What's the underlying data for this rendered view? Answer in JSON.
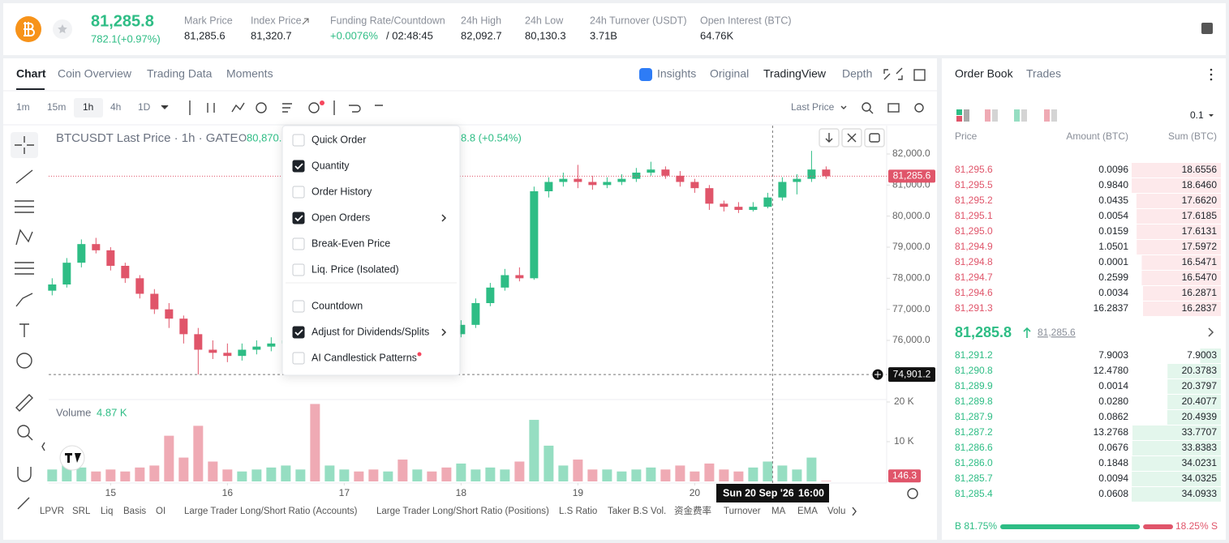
{
  "header": {
    "price": "81,285.8",
    "change": "782.1(+0.97%)",
    "stats": [
      {
        "label": "Mark Price",
        "value": "81,285.6"
      },
      {
        "label": "Index Price",
        "value": "81,320.7"
      },
      {
        "label": "Funding Rate/Countdown",
        "value": "+0.0076%",
        "countdown": "/ 02:48:45"
      },
      {
        "label": "24h High",
        "value": "82,092.7"
      },
      {
        "label": "24h Low",
        "value": "80,130.3"
      },
      {
        "label": "24h Turnover (USDT)",
        "value": "3.71B"
      },
      {
        "label": "Open Interest (BTC)",
        "value": "64.76K"
      }
    ]
  },
  "chart_tabs": [
    "Chart",
    "Coin Overview",
    "Trading Data",
    "Moments"
  ],
  "view_tabs": [
    "Insights",
    "Original",
    "TradingView",
    "Depth"
  ],
  "intervals": [
    "1m",
    "15m",
    "1h",
    "4h",
    "1D"
  ],
  "price_type": "Last Price",
  "legend": {
    "title": "BTCUSDT Last Price · 1h · GATE",
    "open_label": "O",
    "open": "80,870.",
    "change": "8.8 (+0.54%)"
  },
  "chart": {
    "type": "candlestick",
    "up_color": "#2ebd85",
    "down_color": "#e0556a",
    "xlim": [
      14.47,
      21.65
    ],
    "xticks": [
      15,
      16,
      17,
      18,
      19,
      20
    ],
    "ylim": [
      74500,
      82800
    ],
    "yticks": [
      {
        "value": 82000,
        "label": "82,000.0"
      },
      {
        "value": 81000,
        "label": "81,000.0"
      },
      {
        "value": 80000,
        "label": "80,000.0"
      },
      {
        "value": 79000,
        "label": "79,000.0"
      },
      {
        "value": 78000,
        "label": "78,000.0"
      },
      {
        "value": 77000,
        "label": "77,000.0"
      },
      {
        "value": 76000,
        "label": "76,000.0"
      }
    ],
    "x": [
      14.5,
      14.625,
      14.75,
      14.875,
      15,
      15.125,
      15.25,
      15.375,
      15.5,
      15.625,
      15.75,
      15.875,
      16,
      16.125,
      16.25,
      16.375,
      16.5,
      16.625,
      16.75,
      16.875,
      17,
      17.125,
      17.25,
      17.375,
      17.5,
      17.625,
      17.75,
      17.875,
      18,
      18.125,
      18.25,
      18.375,
      18.5,
      18.625,
      18.75,
      18.875,
      19,
      19.125,
      19.25,
      19.375,
      19.5,
      19.625,
      19.75,
      19.875,
      20,
      20.125,
      20.25,
      20.375,
      20.5,
      20.625,
      20.75,
      20.875,
      21,
      21.125
    ],
    "candles": [
      [
        77600,
        78000,
        77450,
        77800
      ],
      [
        77800,
        78650,
        77700,
        78500
      ],
      [
        78500,
        79250,
        78350,
        79100
      ],
      [
        79100,
        79300,
        78800,
        78900
      ],
      [
        78900,
        79000,
        78250,
        78400
      ],
      [
        78400,
        78500,
        77850,
        78000
      ],
      [
        78000,
        78100,
        77350,
        77500
      ],
      [
        77500,
        77650,
        76850,
        77000
      ],
      [
        77000,
        77200,
        76400,
        76700
      ],
      [
        76700,
        76800,
        75900,
        76200
      ],
      [
        76200,
        76400,
        74900,
        75700
      ],
      [
        75700,
        76000,
        75400,
        75600
      ],
      [
        75600,
        75900,
        75300,
        75500
      ],
      [
        75500,
        75900,
        75350,
        75700
      ],
      [
        75700,
        76000,
        75550,
        75800
      ],
      [
        75800,
        76100,
        75650,
        75900
      ],
      [
        75900,
        76200,
        75750,
        76000
      ],
      [
        76000,
        76300,
        75900,
        76100
      ],
      [
        76100,
        76350,
        75800,
        76000
      ],
      [
        76000,
        76400,
        75900,
        76200
      ],
      [
        76200,
        76450,
        76050,
        76300
      ],
      [
        76300,
        76400,
        76050,
        76200
      ],
      [
        76200,
        76300,
        75950,
        76100
      ],
      [
        76100,
        76450,
        76000,
        76300
      ],
      [
        76300,
        76400,
        76050,
        76200
      ],
      [
        76200,
        76550,
        76100,
        76400
      ],
      [
        76400,
        76500,
        76150,
        76300
      ],
      [
        76300,
        76400,
        76050,
        76200
      ],
      [
        76200,
        76650,
        76100,
        76500
      ],
      [
        76500,
        77350,
        76400,
        77200
      ],
      [
        77200,
        77850,
        77100,
        77700
      ],
      [
        77700,
        78300,
        77600,
        78100
      ],
      [
        78100,
        78350,
        77900,
        78000
      ],
      [
        78000,
        80950,
        77950,
        80800
      ],
      [
        80800,
        81250,
        80600,
        81100
      ],
      [
        81100,
        81400,
        80950,
        81200
      ],
      [
        81200,
        81650,
        80900,
        81100
      ],
      [
        81100,
        81300,
        80850,
        81000
      ],
      [
        81000,
        81250,
        80900,
        81100
      ],
      [
        81100,
        81350,
        81000,
        81200
      ],
      [
        81200,
        81550,
        81100,
        81400
      ],
      [
        81400,
        81750,
        81300,
        81500
      ],
      [
        81500,
        81600,
        81200,
        81300
      ],
      [
        81300,
        81450,
        80950,
        81100
      ],
      [
        81100,
        81200,
        80750,
        80900
      ],
      [
        80900,
        81000,
        80200,
        80400
      ],
      [
        80400,
        80500,
        80150,
        80300
      ],
      [
        80300,
        80450,
        80100,
        80200
      ],
      [
        80200,
        80450,
        80150,
        80300
      ],
      [
        80300,
        80750,
        80250,
        80600
      ],
      [
        80600,
        81250,
        80500,
        81100
      ],
      [
        81100,
        81350,
        80700,
        81200
      ],
      [
        81200,
        82100,
        81100,
        81500
      ],
      [
        81500,
        81600,
        81200,
        81285
      ]
    ],
    "last_price": 81285.6,
    "last_price_label": "81,285.6",
    "crosshair": {
      "x": 20.6667,
      "price": 74901.2,
      "price_label": "74,901.2",
      "date": "Sun 20 Sep '26",
      "time": "16:00"
    },
    "volume": {
      "title": "Volume",
      "current": "4.87 K",
      "ylim": [
        0,
        20000
      ],
      "yticks": [
        {
          "value": 10000,
          "label": "10 K"
        },
        {
          "value": 20000,
          "label": "20 K"
        }
      ],
      "values": [
        3000,
        4000,
        3500,
        2500,
        3000,
        2500,
        3500,
        4000,
        11500,
        6000,
        14000,
        5000,
        3000,
        2500,
        3000,
        3500,
        4000,
        3000,
        19500,
        4000,
        3000,
        2500,
        3000,
        2500,
        5500,
        3000,
        2500,
        3500,
        4500,
        3000,
        3500,
        3000,
        5000,
        15500,
        9000,
        4000,
        5500,
        3000,
        3000,
        2500,
        3000,
        3500,
        3000,
        4000,
        2500,
        4500,
        3000,
        2500,
        3500,
        5000,
        4000,
        3000,
        6000,
        146.3
      ],
      "last_label": "146.3"
    }
  },
  "menu": {
    "groups": [
      [
        {
          "label": "Quick Order",
          "checked": false,
          "submenu": false
        },
        {
          "label": "Quantity",
          "checked": true,
          "submenu": false
        },
        {
          "label": "Order History",
          "checked": false,
          "submenu": false
        },
        {
          "label": "Open Orders",
          "checked": true,
          "submenu": true
        },
        {
          "label": "Break-Even Price",
          "checked": false,
          "submenu": false
        },
        {
          "label": "Liq. Price (Isolated)",
          "checked": false,
          "submenu": false
        }
      ],
      [
        {
          "label": "Countdown",
          "checked": false,
          "submenu": false
        },
        {
          "label": "Adjust for Dividends/Splits",
          "checked": true,
          "submenu": true
        },
        {
          "label": "AI Candlestick Patterns",
          "checked": false,
          "submenu": false,
          "badge": true
        }
      ]
    ]
  },
  "indicators": [
    "LPVR",
    "SRL",
    "Liq",
    "Basis",
    "OI",
    "Large Trader Long/Short Ratio (Accounts)",
    "Large Trader Long/Short Ratio (Positions)",
    "L.S Ratio",
    "Taker B.S Vol.",
    "资金费率",
    "Turnover",
    "MA",
    "EMA",
    "Volu"
  ],
  "order_book": {
    "tabs": [
      "Order Book",
      "Trades"
    ],
    "precision": "0.1",
    "columns": [
      "Price",
      "Amount (BTC)",
      "Sum (BTC)"
    ],
    "asks": [
      [
        "81,295.6",
        "0.0096",
        "18.6556"
      ],
      [
        "81,295.5",
        "0.9840",
        "18.6460"
      ],
      [
        "81,295.2",
        "0.0435",
        "17.6620"
      ],
      [
        "81,295.1",
        "0.0054",
        "17.6185"
      ],
      [
        "81,295.0",
        "0.0159",
        "17.6131"
      ],
      [
        "81,294.9",
        "1.0501",
        "17.5972"
      ],
      [
        "81,294.8",
        "0.0001",
        "16.5471"
      ],
      [
        "81,294.7",
        "0.2599",
        "16.5470"
      ],
      [
        "81,294.6",
        "0.0034",
        "16.2871"
      ],
      [
        "81,291.3",
        "16.2837",
        "16.2837"
      ]
    ],
    "mid_price": "81,285.8",
    "mark_price": "81,285.6",
    "bids": [
      [
        "81,291.2",
        "7.9003",
        "7.9003"
      ],
      [
        "81,290.8",
        "12.4780",
        "20.3783"
      ],
      [
        "81,289.9",
        "0.0014",
        "20.3797"
      ],
      [
        "81,289.8",
        "0.0280",
        "20.4077"
      ],
      [
        "81,287.9",
        "0.0862",
        "20.4939"
      ],
      [
        "81,287.2",
        "13.2768",
        "33.7707"
      ],
      [
        "81,286.6",
        "0.0676",
        "33.8383"
      ],
      [
        "81,286.0",
        "0.1848",
        "34.0231"
      ],
      [
        "81,285.7",
        "0.0094",
        "34.0325"
      ],
      [
        "81,285.4",
        "0.0608",
        "34.0933"
      ]
    ],
    "ratio": {
      "buy": 81.75,
      "buy_label": "B 81.75%",
      "sell": 18.25,
      "sell_label": "18.25% S"
    }
  }
}
